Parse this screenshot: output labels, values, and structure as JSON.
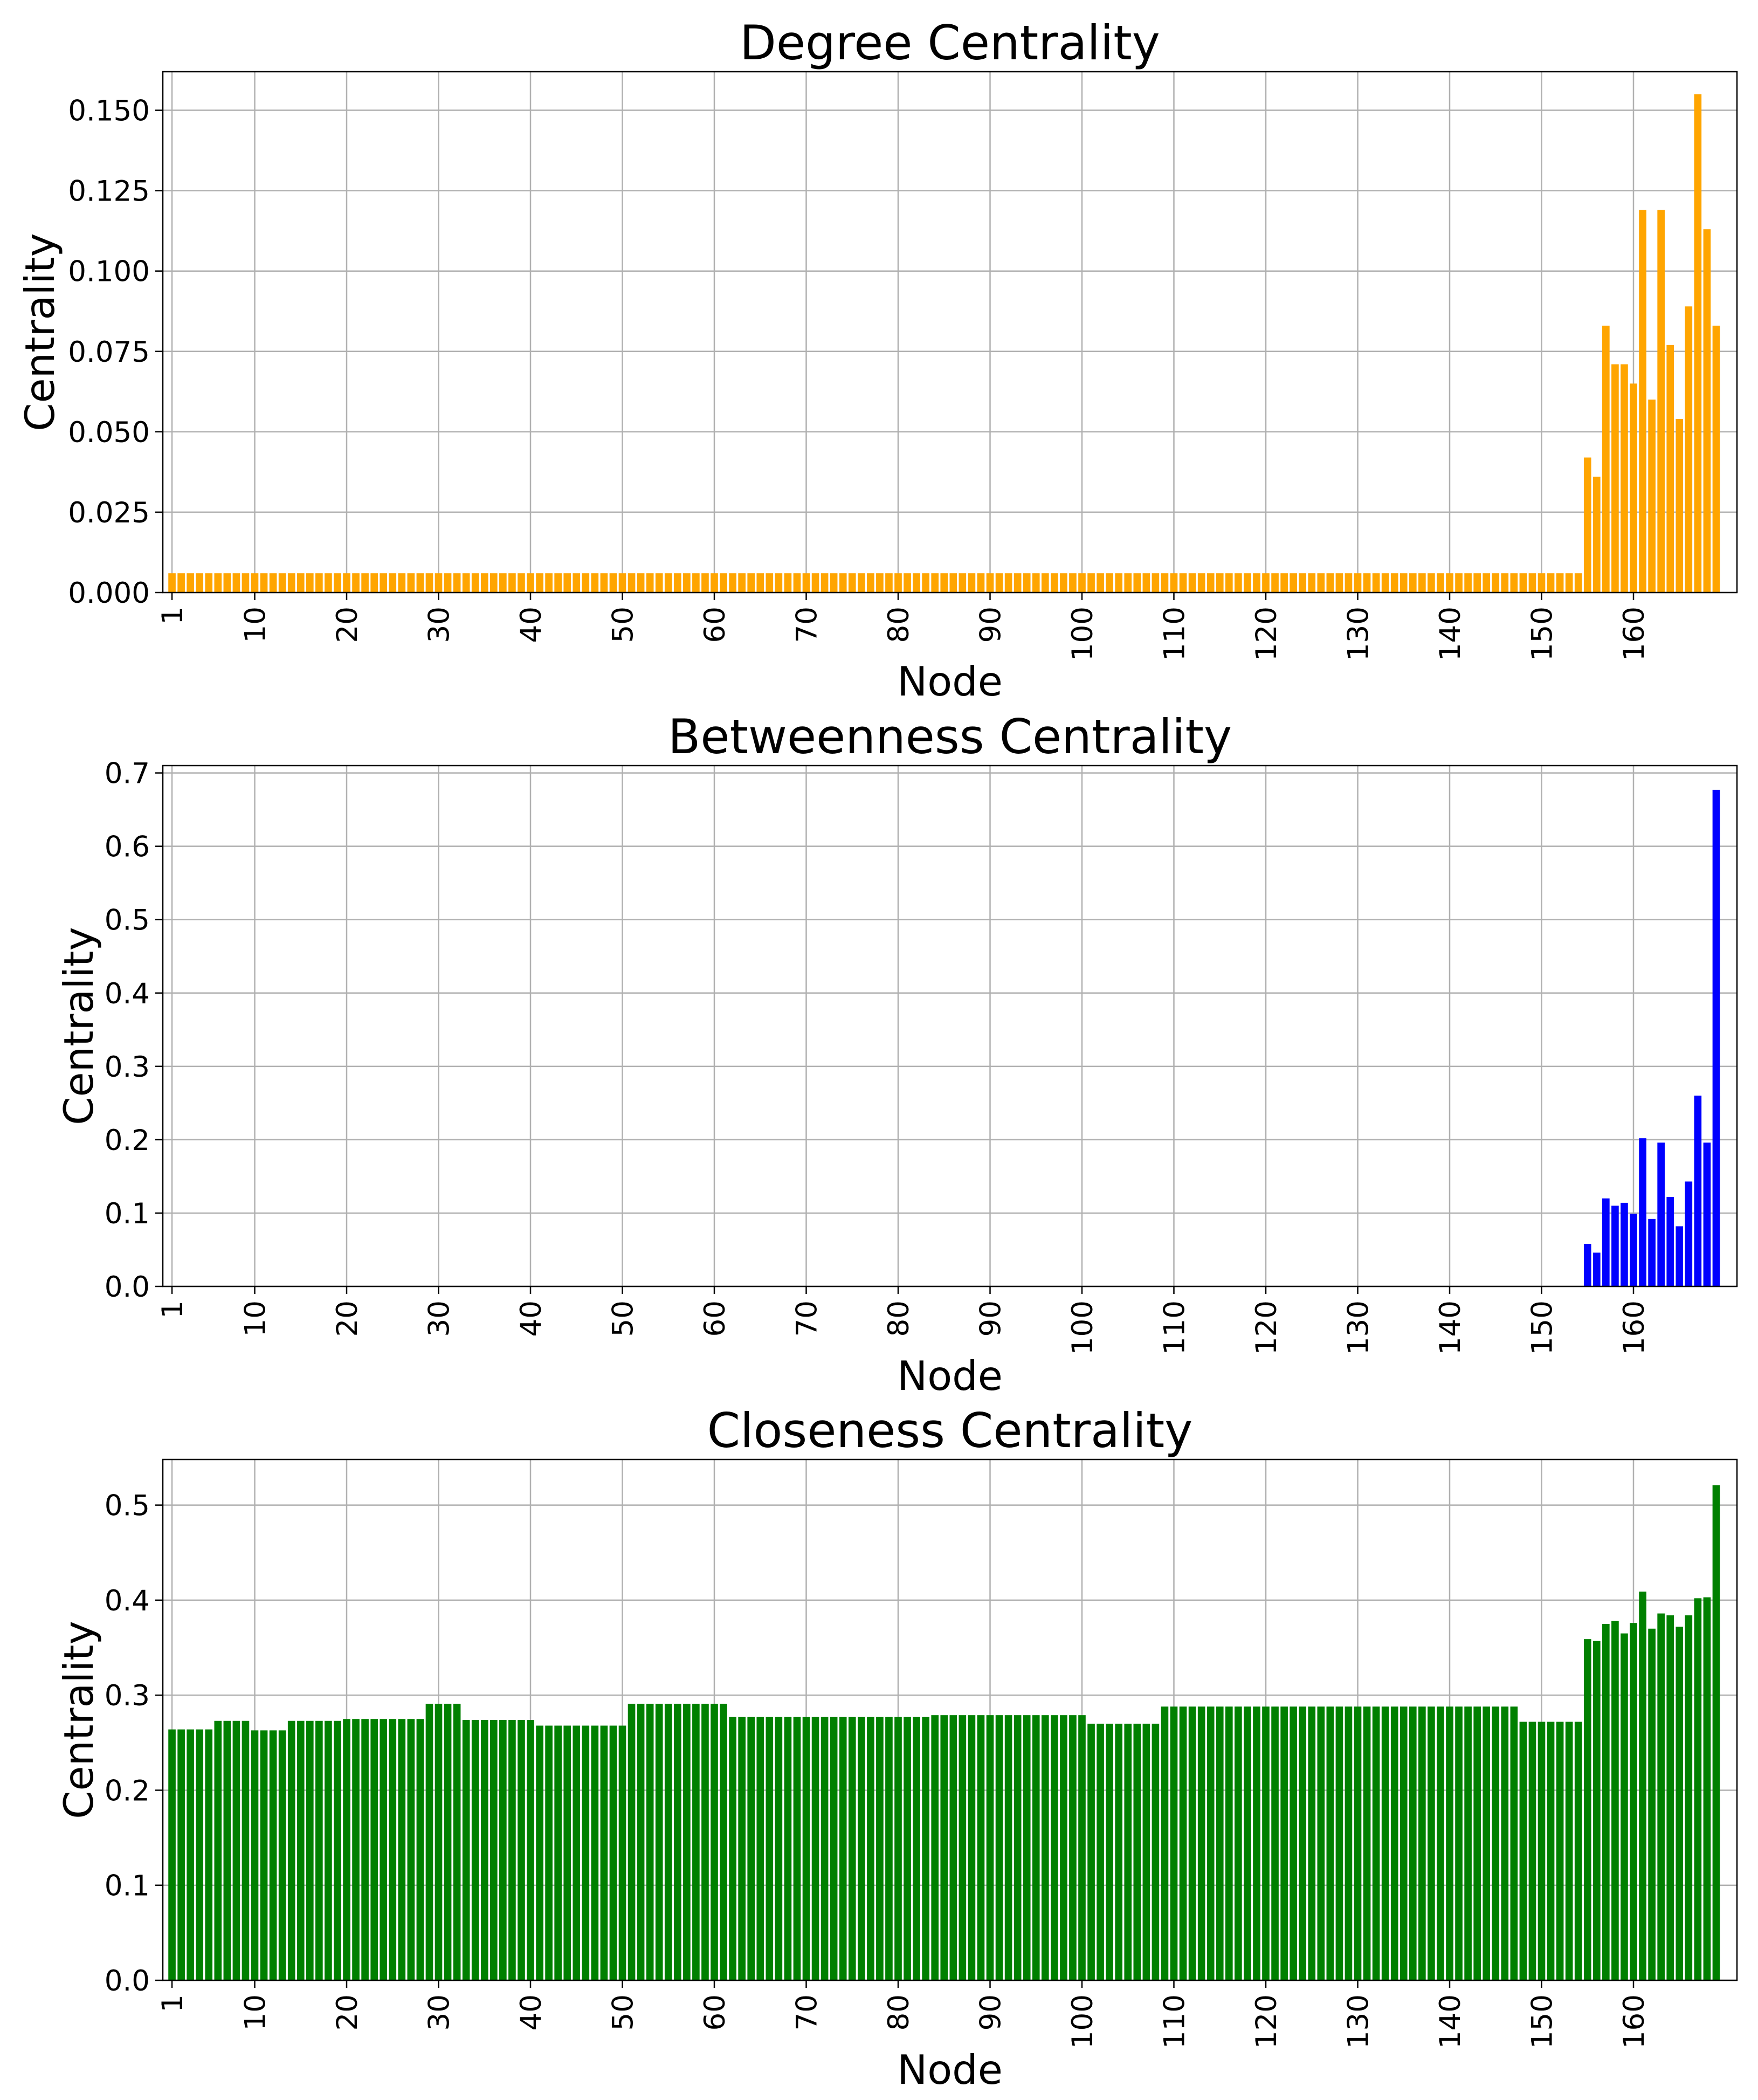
{
  "chart_data": [
    {
      "type": "bar",
      "title": "Degree Centrality",
      "xlabel": "Node",
      "ylabel": "Centrality",
      "color": "#ffa500",
      "x_range": [
        1,
        169
      ],
      "x_ticks": [
        1,
        10,
        20,
        30,
        40,
        50,
        60,
        70,
        80,
        90,
        100,
        110,
        120,
        130,
        140,
        150,
        160
      ],
      "ylim": [
        0,
        0.162
      ],
      "y_ticks": [
        0.0,
        0.025,
        0.05,
        0.075,
        0.1,
        0.125,
        0.15
      ],
      "y_tick_labels": [
        "0.000",
        "0.025",
        "0.050",
        "0.075",
        "0.100",
        "0.125",
        "0.150"
      ],
      "grid": true,
      "segments": [
        {
          "from": 1,
          "to": 154,
          "value": 0.006
        }
      ],
      "values_from_155": [
        0.042,
        0.036,
        0.083,
        0.071,
        0.071,
        0.065,
        0.119,
        0.06,
        0.119,
        0.077,
        0.054,
        0.089,
        0.155,
        0.113,
        0.083
      ]
    },
    {
      "type": "bar",
      "title": "Betweenness Centrality",
      "xlabel": "Node",
      "ylabel": "Centrality",
      "color": "#0000ff",
      "x_range": [
        1,
        169
      ],
      "x_ticks": [
        1,
        10,
        20,
        30,
        40,
        50,
        60,
        70,
        80,
        90,
        100,
        110,
        120,
        130,
        140,
        150,
        160
      ],
      "ylim": [
        0,
        0.71
      ],
      "y_ticks": [
        0.0,
        0.1,
        0.2,
        0.3,
        0.4,
        0.5,
        0.6,
        0.7
      ],
      "y_tick_labels": [
        "0.0",
        "0.1",
        "0.2",
        "0.3",
        "0.4",
        "0.5",
        "0.6",
        "0.7"
      ],
      "grid": true,
      "segments": [
        {
          "from": 1,
          "to": 154,
          "value": 0.0
        }
      ],
      "values_from_155": [
        0.058,
        0.046,
        0.12,
        0.11,
        0.114,
        0.099,
        0.202,
        0.092,
        0.196,
        0.122,
        0.082,
        0.143,
        0.26,
        0.196,
        0.677
      ]
    },
    {
      "type": "bar",
      "title": "Closeness Centrality",
      "xlabel": "Node",
      "ylabel": "Centrality",
      "color": "#008000",
      "x_range": [
        1,
        169
      ],
      "x_ticks": [
        1,
        10,
        20,
        30,
        40,
        50,
        60,
        70,
        80,
        90,
        100,
        110,
        120,
        130,
        140,
        150,
        160
      ],
      "ylim": [
        0,
        0.548
      ],
      "y_ticks": [
        0.0,
        0.1,
        0.2,
        0.3,
        0.4,
        0.5
      ],
      "y_tick_labels": [
        "0.0",
        "0.1",
        "0.2",
        "0.3",
        "0.4",
        "0.5"
      ],
      "grid": true,
      "segments": [
        {
          "from": 1,
          "to": 5,
          "value": 0.264
        },
        {
          "from": 6,
          "to": 9,
          "value": 0.273
        },
        {
          "from": 10,
          "to": 13,
          "value": 0.263
        },
        {
          "from": 14,
          "to": 19,
          "value": 0.273
        },
        {
          "from": 20,
          "to": 28,
          "value": 0.275
        },
        {
          "from": 29,
          "to": 32,
          "value": 0.291
        },
        {
          "from": 33,
          "to": 40,
          "value": 0.274
        },
        {
          "from": 41,
          "to": 50,
          "value": 0.268
        },
        {
          "from": 51,
          "to": 61,
          "value": 0.291
        },
        {
          "from": 62,
          "to": 83,
          "value": 0.277
        },
        {
          "from": 84,
          "to": 100,
          "value": 0.279
        },
        {
          "from": 101,
          "to": 108,
          "value": 0.27
        },
        {
          "from": 109,
          "to": 147,
          "value": 0.288
        },
        {
          "from": 148,
          "to": 154,
          "value": 0.272
        }
      ],
      "values_from_155": [
        0.359,
        0.357,
        0.375,
        0.378,
        0.365,
        0.376,
        0.409,
        0.37,
        0.386,
        0.384,
        0.372,
        0.384,
        0.402,
        0.403,
        0.521
      ]
    }
  ]
}
